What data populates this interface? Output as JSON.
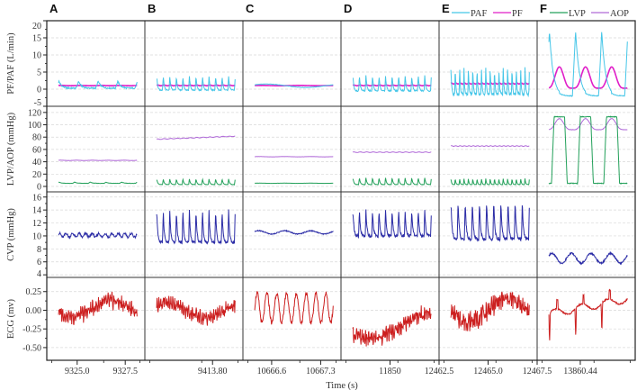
{
  "chart_data": {
    "type": "line",
    "xlabel": "Time (s)",
    "colors": {
      "PAF": "#45c6e8",
      "PF": "#e01ec8",
      "LVP": "#23a05a",
      "AOP": "#b06ad8",
      "CVP": "#2b2ca6",
      "ECG": "#cc1f1f"
    },
    "legend": [
      {
        "panel": "E",
        "items": [
          "PAF",
          "PF"
        ]
      },
      {
        "panel": "F",
        "items": [
          "LVP",
          "AOP"
        ]
      }
    ],
    "rows": [
      {
        "ylabel": "PF/PAF (L/min)",
        "ylim": [
          -5,
          20
        ],
        "ticks": [
          20,
          15,
          10,
          5,
          0,
          -5
        ],
        "tick_labels": [
          "20",
          "15",
          "10",
          "5",
          "0",
          "-5"
        ],
        "series": [
          "PAF",
          "PF"
        ]
      },
      {
        "ylabel": "LVP/AOP (mmHg)",
        "ylim": [
          -8.8,
          130
        ],
        "ticks": [
          120,
          100,
          80,
          60,
          40,
          20,
          0
        ],
        "tick_labels": [
          "120",
          "100",
          "80",
          "60",
          "40",
          "20",
          "0"
        ],
        "series": [
          "LVP",
          "AOP"
        ]
      },
      {
        "ylabel": "CVP (mmHg)",
        "ylim": [
          3.6,
          16.8
        ],
        "ticks": [
          16,
          14,
          12,
          10,
          8,
          6,
          4
        ],
        "tick_labels": [
          "16",
          "14",
          "12",
          "10",
          "8",
          "6",
          "4"
        ],
        "series": [
          "CVP"
        ]
      },
      {
        "ylabel": "ECG (mv)",
        "ylim": [
          -0.67,
          0.44
        ],
        "ticks": [
          0.25,
          0,
          -0.25,
          -0.5
        ],
        "tick_labels": [
          "0.25",
          "0.00",
          "-0.25",
          "-0.50"
        ],
        "series": [
          "ECG"
        ]
      }
    ],
    "panels": [
      {
        "label": "A",
        "xlim": [
          9323.42,
          9328.52
        ],
        "xticks": [
          9325.0,
          9327.5
        ],
        "xtick_labels": [
          "9325.0",
          "9327.5"
        ],
        "series": {
          "PAF": {
            "base": 0.3,
            "amp": 2,
            "beats": 4,
            "shape": "spike",
            "noise": 0.4
          },
          "PF": {
            "base": 1,
            "amp": 0.1,
            "beats": 4,
            "shape": "sine",
            "noise": 0.05
          },
          "AOP": {
            "base": 42,
            "amp": 0.5,
            "beats": 5,
            "shape": "sine",
            "noise": 0.3
          },
          "LVP": {
            "base": 5,
            "amp": 2,
            "beats": 5,
            "shape": "spike",
            "noise": 0.4
          },
          "CVP": {
            "base": 9.8,
            "amp": 0.6,
            "beats": 12,
            "shape": "sine",
            "noise": 0.35
          },
          "ECG": {
            "base": 0.02,
            "amp": 0.1,
            "waves": 1,
            "phase": 3.6,
            "noise": 0.08,
            "beats": 40
          }
        }
      },
      {
        "label": "B",
        "xlim": [
          9410.28,
          9415.38
        ],
        "xticks": [
          9413.8
        ],
        "xtick_labels": [
          "9413.80"
        ],
        "series": {
          "PAF": {
            "base": -0.3,
            "amp": 4,
            "beats": 12,
            "shape": "spike",
            "noise": 0.3
          },
          "PF": {
            "base": 1,
            "amp": 0.2,
            "beats": 12,
            "shape": "sine",
            "noise": 0.05
          },
          "AOP": {
            "base": 76,
            "amp": 1,
            "beats": 12,
            "shape": "sine",
            "noise": 0.3,
            "drift": 5
          },
          "LVP": {
            "base": 3,
            "amp": 9,
            "beats": 12,
            "shape": "spike",
            "noise": 0.5
          },
          "CVP": {
            "base": 9,
            "amp": 5,
            "beats": 12,
            "shape": "spike",
            "noise": 0.4
          },
          "ECG": {
            "base": 0,
            "amp": 0.1,
            "waves": 1,
            "phase": 0.8,
            "noise": 0.07,
            "beats": 40
          }
        }
      },
      {
        "label": "C",
        "xlim": [
          10666.19,
          10667.59
        ],
        "xticks": [
          10666.6,
          10667.3
        ],
        "xtick_labels": [
          "10666.6",
          "10667.3"
        ],
        "series": {
          "PAF": {
            "base": 0.5,
            "amp": 1,
            "beats": 1,
            "shape": "sine",
            "noise": 0.1
          },
          "PF": {
            "base": 1,
            "amp": 0.1,
            "beats": 2,
            "shape": "sine",
            "noise": 0.03
          },
          "AOP": {
            "base": 48,
            "amp": 0.4,
            "beats": 3,
            "shape": "sine",
            "noise": 0.2
          },
          "LVP": {
            "base": 5,
            "amp": 0.3,
            "beats": 3,
            "shape": "sine",
            "noise": 0.1
          },
          "CVP": {
            "base": 10.3,
            "amp": 0.5,
            "beats": 3,
            "shape": "sine",
            "noise": 0.15
          },
          "ECG": {
            "base": 0.03,
            "amp": 0.15,
            "waves": 8,
            "phase": 0,
            "noise": 0.03,
            "beats": 8
          }
        }
      },
      {
        "label": "D",
        "xlim": [
          11845,
          11855
        ],
        "xticks": [
          11850
        ],
        "xtick_labels": [
          "11850"
        ],
        "series": {
          "PAF": {
            "base": -0.5,
            "amp": 4.5,
            "beats": 12,
            "shape": "spike",
            "noise": 0.4
          },
          "PF": {
            "base": 1,
            "amp": 0.2,
            "beats": 12,
            "shape": "sine",
            "noise": 0.05
          },
          "AOP": {
            "base": 55,
            "amp": 1,
            "beats": 12,
            "shape": "sine",
            "noise": 0.3
          },
          "LVP": {
            "base": 3,
            "amp": 11,
            "beats": 12,
            "shape": "spike",
            "noise": 0.6
          },
          "CVP": {
            "base": 10,
            "amp": 4,
            "beats": 12,
            "shape": "spike",
            "noise": 0.5
          },
          "ECG": {
            "base": -0.2,
            "amp": 0.18,
            "waves": 0.6,
            "phase": 3.9,
            "noise": 0.08,
            "beats": 45
          }
        }
      },
      {
        "label": "E",
        "xlim": [
          12462.5,
          12467.5
        ],
        "xticks": [
          12462.5,
          12465.0,
          12467.5
        ],
        "xtick_labels": [
          "12462.5",
          "12465.0",
          "12467.5"
        ],
        "series": {
          "PAF": {
            "base": -1.5,
            "amp": 8,
            "beats": 18,
            "shape": "spike",
            "noise": 1
          },
          "PF": {
            "base": 1.5,
            "amp": 0.3,
            "beats": 18,
            "shape": "sine",
            "noise": 0.05
          },
          "AOP": {
            "base": 65,
            "amp": 1,
            "beats": 18,
            "shape": "sine",
            "noise": 0.3
          },
          "LVP": {
            "base": 3,
            "amp": 10,
            "beats": 18,
            "shape": "spike",
            "noise": 0.5
          },
          "CVP": {
            "base": 9.5,
            "amp": 6,
            "beats": 11,
            "shape": "spike",
            "noise": 0.5
          },
          "ECG": {
            "base": 0,
            "amp": 0.15,
            "waves": 1,
            "phase": 3.3,
            "noise": 0.1,
            "beats": 45
          }
        }
      },
      {
        "label": "F",
        "xlim": [
          13858.24,
          13863.24
        ],
        "xticks": [
          13860.44
        ],
        "xtick_labels": [
          "13860.44"
        ],
        "series": {
          "PAF": {
            "base": -2,
            "amp": 19,
            "beats": 3,
            "shape": "spike",
            "noise": 0.2
          },
          "PF": {
            "base": 0.3,
            "amp": 6.2,
            "beats": 3,
            "shape": "smooth",
            "noise": 0.02
          },
          "AOP": {
            "base": 92,
            "amp": 18,
            "beats": 3,
            "shape": "smooth",
            "noise": 0.5
          },
          "LVP": {
            "base": 5,
            "amp": 108,
            "beats": 3,
            "shape": "square",
            "noise": 1
          },
          "CVP": {
            "base": 5.8,
            "amp": 1.5,
            "beats": 4,
            "shape": "sine",
            "noise": 0.25
          },
          "ECG": {
            "base": 0,
            "amp": 0.2,
            "waves": 3,
            "phase": 0,
            "noise": 0.02,
            "beats": 3,
            "shape": "ecgF"
          }
        }
      }
    ]
  }
}
